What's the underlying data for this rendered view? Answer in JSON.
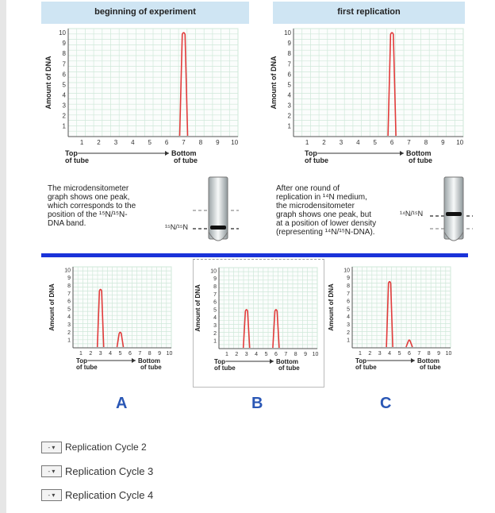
{
  "top_left": {
    "header": "beginning of experiment",
    "y_axis_label": "Amount of DNA",
    "y_ticks": [
      "10",
      "9",
      "8",
      "7",
      "6",
      "5",
      "4",
      "3",
      "2",
      "1"
    ],
    "x_ticks": [
      "1",
      "2",
      "3",
      "4",
      "5",
      "6",
      "7",
      "8",
      "9",
      "10"
    ],
    "top_label": "Top",
    "top_sub": "of tube",
    "bottom_label": "Bottom",
    "bottom_sub": "of tube",
    "peak_position": 7,
    "peak_height": 10,
    "description_lines": [
      "The microdensitometer",
      "graph shows one peak,",
      "which corresponds to the",
      "position of the ¹⁵N/¹⁵N-",
      "DNA band."
    ],
    "tube_label": "¹⁵N/¹⁵N"
  },
  "top_right": {
    "header": "first replication",
    "y_axis_label": "Amount of DNA",
    "y_ticks": [
      "10",
      "9",
      "8",
      "7",
      "6",
      "5",
      "4",
      "3",
      "2",
      "1"
    ],
    "x_ticks": [
      "1",
      "2",
      "3",
      "4",
      "5",
      "6",
      "7",
      "8",
      "9",
      "10"
    ],
    "top_label": "Top",
    "top_sub": "of tube",
    "bottom_label": "Bottom",
    "bottom_sub": "of tube",
    "peak_position": 6,
    "peak_height": 10,
    "description_lines": [
      "After one round of",
      "replication in ¹⁴N medium,",
      "the microdensitometer",
      "graph shows one peak, but",
      "at a position of lower density",
      "(representing ¹⁴N/¹⁵N-DNA)."
    ],
    "tube_label": "¹⁴N/¹⁵N"
  },
  "options": {
    "A": {
      "letter": "A",
      "peaks": [
        {
          "position": 3,
          "height": 7.5
        },
        {
          "position": 5,
          "height": 2
        }
      ]
    },
    "B": {
      "letter": "B",
      "peaks": [
        {
          "position": 3,
          "height": 5
        },
        {
          "position": 6,
          "height": 5
        }
      ]
    },
    "C": {
      "letter": "C",
      "peaks": [
        {
          "position": 4,
          "height": 8.5
        },
        {
          "position": 6,
          "height": 1
        }
      ]
    }
  },
  "small_chart": {
    "y_axis_label": "Amount of DNA",
    "y_ticks": [
      "10",
      "9",
      "8",
      "7",
      "6",
      "5",
      "4",
      "3",
      "2",
      "1"
    ],
    "x_ticks": [
      "1",
      "2",
      "3",
      "4",
      "5",
      "6",
      "7",
      "8",
      "9",
      "10"
    ],
    "top_label": "Top",
    "top_sub": "of tube",
    "bottom_label": "Bottom",
    "bottom_sub": "of tube"
  },
  "selects": [
    {
      "value": "-",
      "label": "Replication Cycle 2"
    },
    {
      "value": "-",
      "label": "Replication Cycle 3"
    },
    {
      "value": "-",
      "label": "Replication Cycle 4"
    }
  ],
  "colors": {
    "header_bg": "#cfe5f3",
    "peak": "#e23b3b",
    "grid": "#cfe8d9",
    "rule": "#1a33d9",
    "letter": "#2a57b5"
  }
}
